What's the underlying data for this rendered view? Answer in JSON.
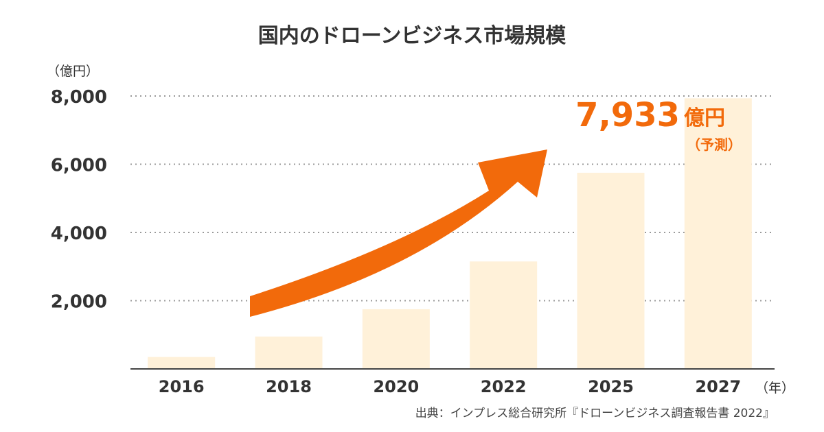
{
  "chart_data": {
    "type": "bar",
    "title": "国内のドローンビジネス市場規模",
    "y_unit_label": "（億円）",
    "x_unit_label": "（年）",
    "categories": [
      "2016",
      "2018",
      "2020",
      "2022",
      "2025",
      "2027"
    ],
    "values": [
      350,
      950,
      1750,
      3150,
      5750,
      7933
    ],
    "ylim": [
      0,
      8000
    ],
    "yticks": [
      2000,
      4000,
      6000,
      8000
    ],
    "ytick_labels": [
      "2,000",
      "4,000",
      "6,000",
      "8,000"
    ],
    "grid": true,
    "callout": {
      "value": "7,933",
      "unit": "億円",
      "note": "（予測）"
    },
    "source": "出典：インプレス総合研究所『ドローンビジネス調査報告書 2022』"
  },
  "colors": {
    "bar": "#FFF1D9",
    "accent": "#F26A0B",
    "text": "#333333",
    "grid": "#999999"
  }
}
